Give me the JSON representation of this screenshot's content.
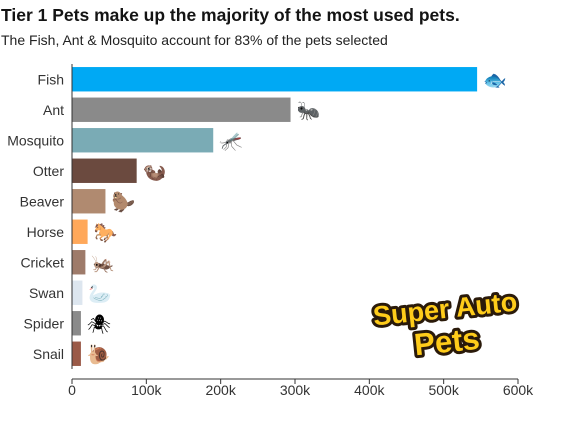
{
  "chart_data": {
    "type": "bar",
    "orientation": "horizontal",
    "title": "Tier 1 Pets make up the majority of the most used pets.",
    "subtitle": "The Fish, Ant & Mosquito account for 83% of the pets selected",
    "categories": [
      "Fish",
      "Ant",
      "Mosquito",
      "Otter",
      "Beaver",
      "Horse",
      "Cricket",
      "Swan",
      "Spider",
      "Snail"
    ],
    "values": [
      545000,
      294000,
      190000,
      87000,
      45000,
      21000,
      18000,
      14000,
      12000,
      12000
    ],
    "bar_colors": [
      "#00a9f4",
      "#8a8a8a",
      "#7aabb5",
      "#6b4a3f",
      "#b08a70",
      "#ffa85a",
      "#9e7b6a",
      "#dde6ef",
      "#8a8a8a",
      "#9a5a48"
    ],
    "icons": [
      "fish-icon",
      "ant-icon",
      "mosquito-icon",
      "otter-icon",
      "beaver-icon",
      "horse-icon",
      "cricket-icon",
      "swan-icon",
      "spider-icon",
      "snail-icon"
    ],
    "icon_glyphs": [
      "🐟",
      "🐜",
      "🦟",
      "🦦",
      "🦫",
      "🐎",
      "🦗",
      "🦢",
      "🕷",
      "🐌"
    ],
    "xlim": [
      0,
      600000
    ],
    "xticks": [
      0,
      100000,
      200000,
      300000,
      400000,
      500000,
      600000
    ],
    "xtick_labels": [
      "0",
      "100k",
      "200k",
      "300k",
      "400k",
      "500k",
      "600k"
    ],
    "xlabel": "",
    "ylabel": "",
    "grid": false
  },
  "logo": {
    "text_line1": "Super Auto",
    "text_line2": "Pets",
    "fill_color": "#ffcc1a",
    "outline_color": "#2a1a0a"
  }
}
